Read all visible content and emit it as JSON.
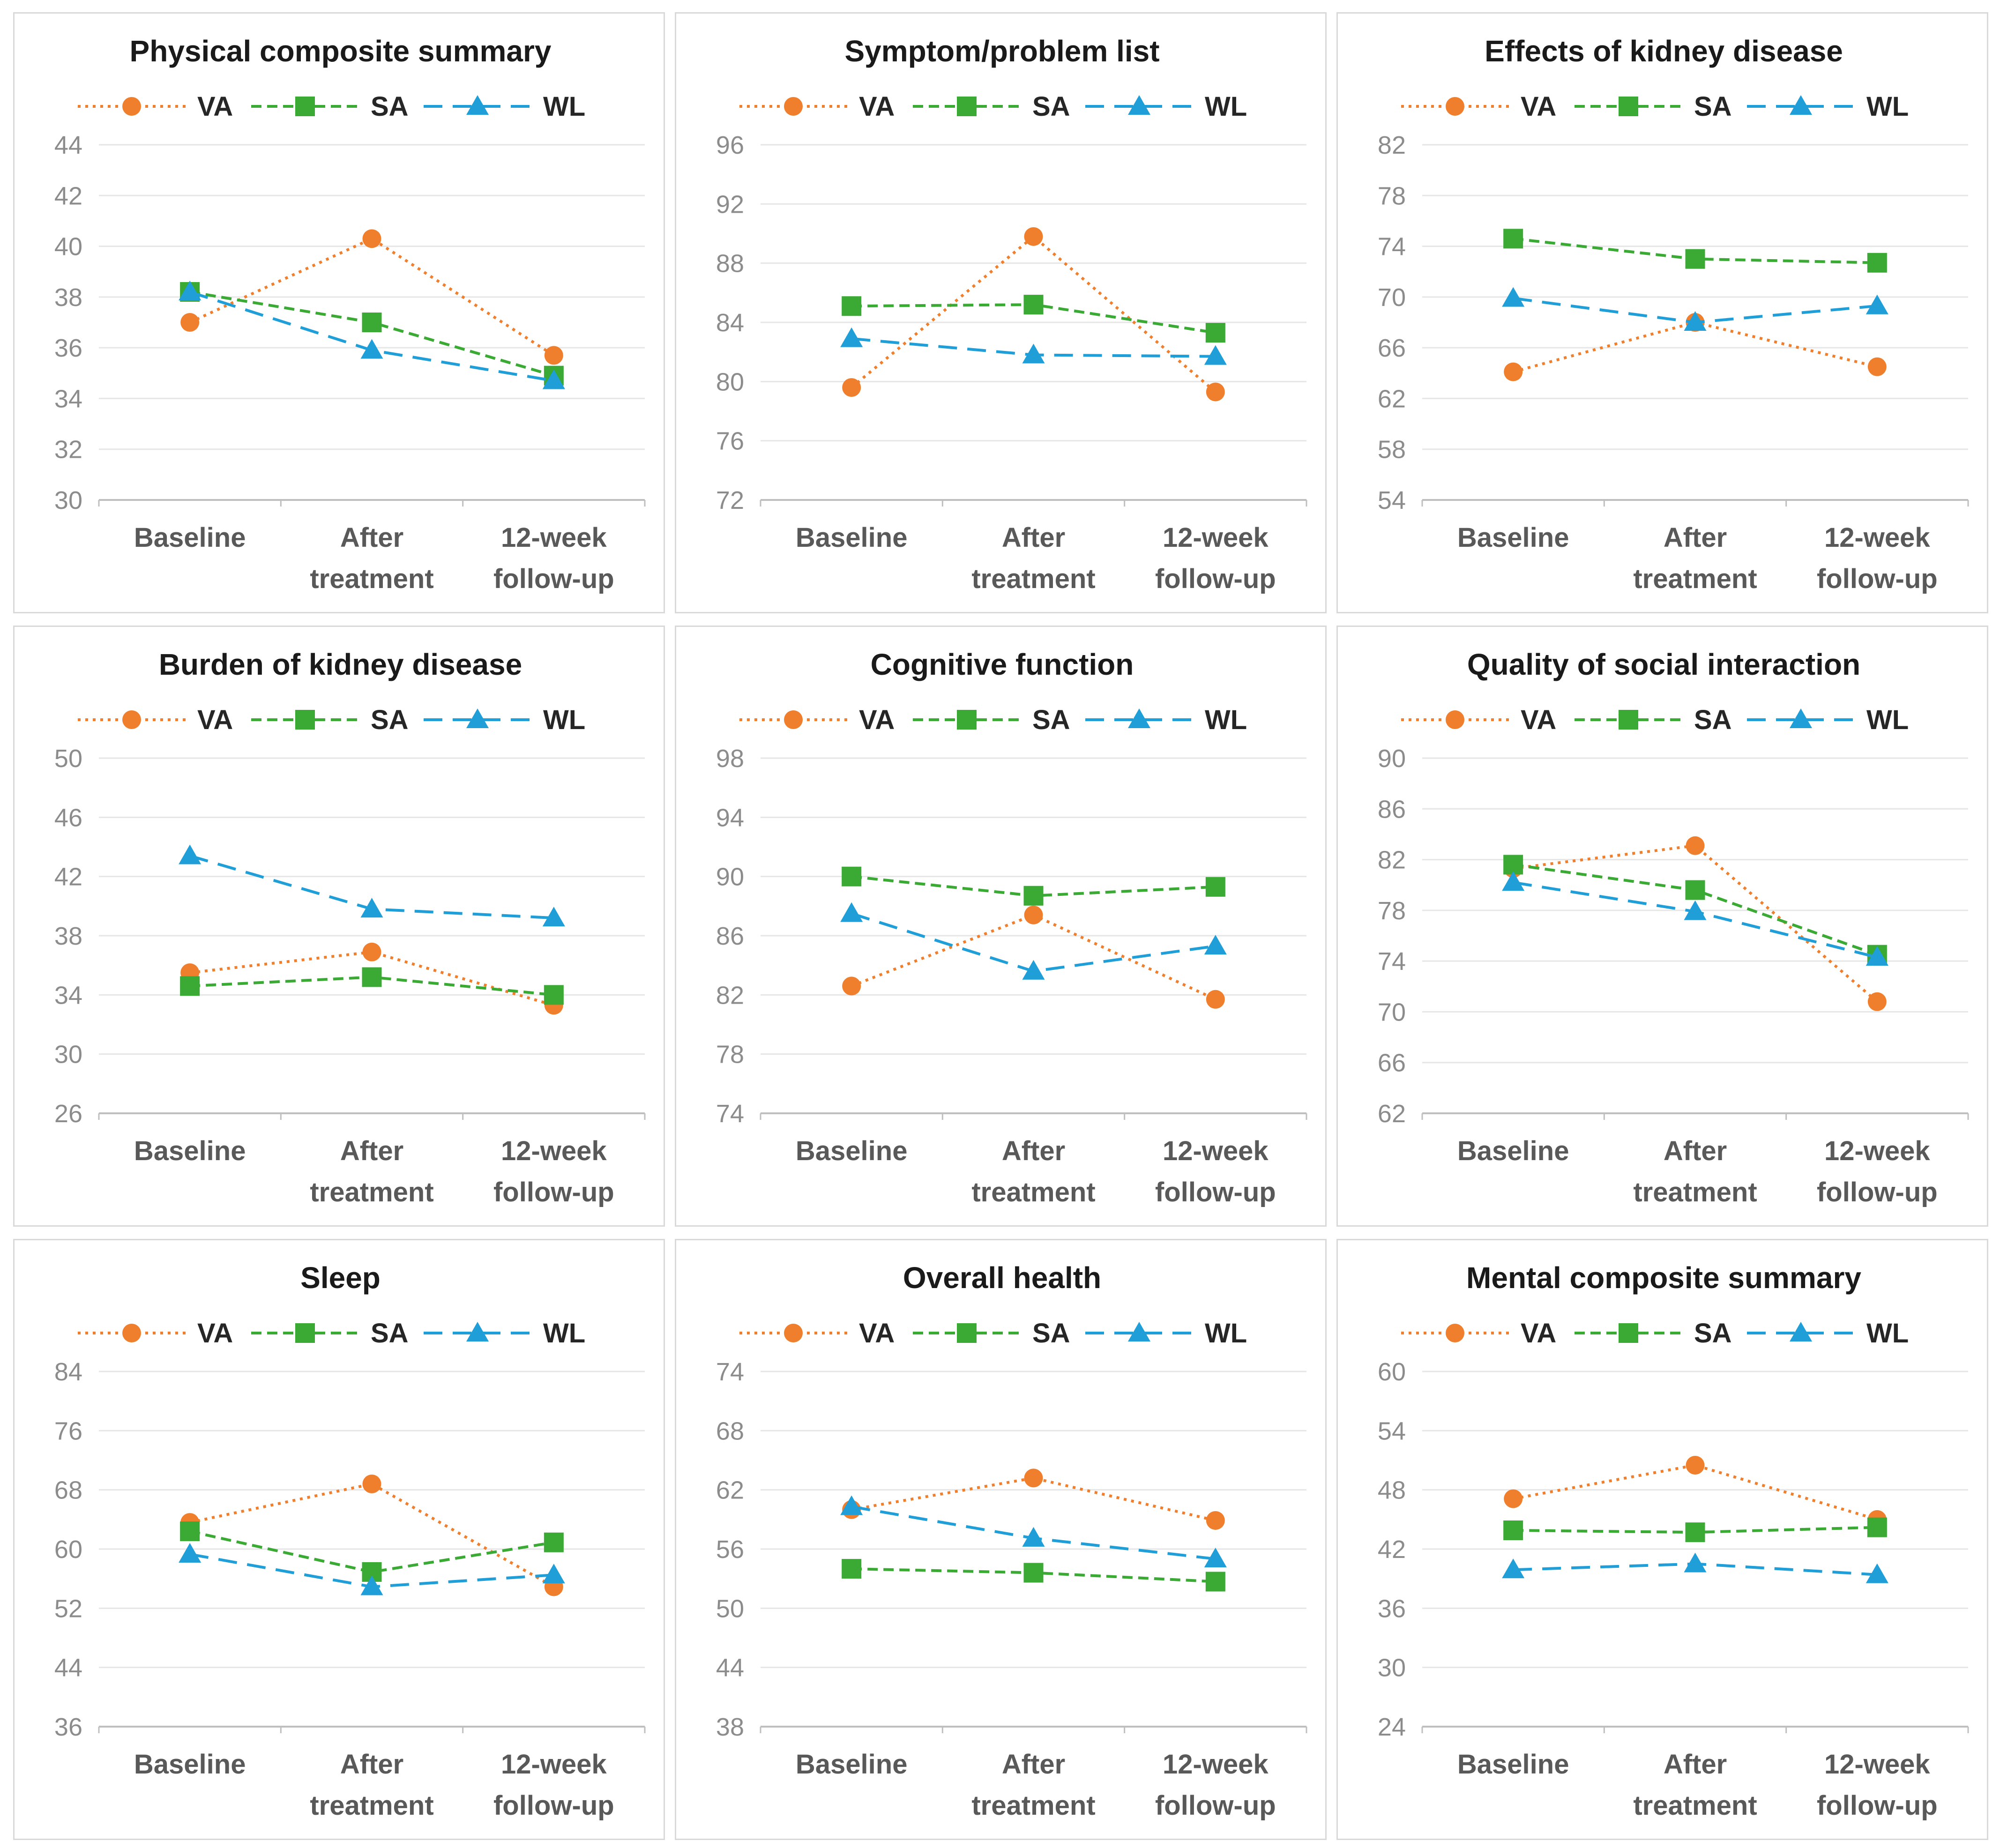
{
  "legend": [
    {
      "key": "VA",
      "label": "VA",
      "color": "#f07f2d",
      "marker": "circle",
      "dash": "dotted"
    },
    {
      "key": "SA",
      "label": "SA",
      "color": "#3aaa35",
      "marker": "square",
      "dash": "dashed"
    },
    {
      "key": "WL",
      "label": "WL",
      "color": "#1f9ed8",
      "marker": "triangle",
      "dash": "longdash"
    }
  ],
  "categories": [
    [
      "Baseline"
    ],
    [
      "After",
      "treatment"
    ],
    [
      "12-week",
      "follow-up"
    ]
  ],
  "chart_data": [
    {
      "type": "line",
      "title": "Physical composite summary",
      "ylim": [
        30,
        44
      ],
      "yticks": [
        30,
        32,
        34,
        36,
        38,
        40,
        42,
        44
      ],
      "series": [
        {
          "name": "VA",
          "values": [
            37.0,
            40.3,
            35.7
          ]
        },
        {
          "name": "SA",
          "values": [
            38.2,
            37.0,
            34.9
          ]
        },
        {
          "name": "WL",
          "values": [
            38.2,
            35.9,
            34.7
          ]
        }
      ]
    },
    {
      "type": "line",
      "title": "Symptom/problem list",
      "ylim": [
        72,
        96
      ],
      "yticks": [
        72,
        76,
        80,
        84,
        88,
        92,
        96
      ],
      "series": [
        {
          "name": "VA",
          "values": [
            79.6,
            89.8,
            79.3
          ]
        },
        {
          "name": "SA",
          "values": [
            85.1,
            85.2,
            83.3
          ]
        },
        {
          "name": "WL",
          "values": [
            82.9,
            81.8,
            81.7
          ]
        }
      ]
    },
    {
      "type": "line",
      "title": "Effects of kidney disease",
      "ylim": [
        54,
        82
      ],
      "yticks": [
        54,
        58,
        62,
        66,
        70,
        74,
        78,
        82
      ],
      "series": [
        {
          "name": "VA",
          "values": [
            64.1,
            68.0,
            64.5
          ]
        },
        {
          "name": "SA",
          "values": [
            74.6,
            73.0,
            72.7
          ]
        },
        {
          "name": "WL",
          "values": [
            69.9,
            68.0,
            69.3
          ]
        }
      ]
    },
    {
      "type": "line",
      "title": "Burden of kidney disease",
      "ylim": [
        26,
        50
      ],
      "yticks": [
        26,
        30,
        34,
        38,
        42,
        46,
        50
      ],
      "series": [
        {
          "name": "VA",
          "values": [
            35.5,
            36.9,
            33.3
          ]
        },
        {
          "name": "SA",
          "values": [
            34.6,
            35.2,
            34.0
          ]
        },
        {
          "name": "WL",
          "values": [
            43.4,
            39.8,
            39.2
          ]
        }
      ]
    },
    {
      "type": "line",
      "title": "Cognitive function",
      "ylim": [
        74,
        98
      ],
      "yticks": [
        74,
        78,
        82,
        86,
        90,
        94,
        98
      ],
      "series": [
        {
          "name": "VA",
          "values": [
            82.6,
            87.4,
            81.7
          ]
        },
        {
          "name": "SA",
          "values": [
            90.0,
            88.7,
            89.3
          ]
        },
        {
          "name": "WL",
          "values": [
            87.5,
            83.6,
            85.3
          ]
        }
      ]
    },
    {
      "type": "line",
      "title": "Quality of social interaction",
      "ylim": [
        62,
        90
      ],
      "yticks": [
        62,
        66,
        70,
        74,
        78,
        82,
        86,
        90
      ],
      "series": [
        {
          "name": "VA",
          "values": [
            81.3,
            83.1,
            70.8
          ]
        },
        {
          "name": "SA",
          "values": [
            81.6,
            79.6,
            74.5
          ]
        },
        {
          "name": "WL",
          "values": [
            80.2,
            77.9,
            74.3
          ]
        }
      ]
    },
    {
      "type": "line",
      "title": "Sleep",
      "ylim": [
        36,
        84
      ],
      "yticks": [
        36,
        44,
        52,
        60,
        68,
        76,
        84
      ],
      "series": [
        {
          "name": "VA",
          "values": [
            63.6,
            68.8,
            54.9
          ]
        },
        {
          "name": "SA",
          "values": [
            62.4,
            56.9,
            60.9
          ]
        },
        {
          "name": "WL",
          "values": [
            59.3,
            54.9,
            56.5
          ]
        }
      ]
    },
    {
      "type": "line",
      "title": "Overall health",
      "ylim": [
        38,
        74
      ],
      "yticks": [
        38,
        44,
        50,
        56,
        62,
        68,
        74
      ],
      "series": [
        {
          "name": "VA",
          "values": [
            60.0,
            63.2,
            58.9
          ]
        },
        {
          "name": "SA",
          "values": [
            54.0,
            53.6,
            52.7
          ]
        },
        {
          "name": "WL",
          "values": [
            60.3,
            57.1,
            55.0
          ]
        }
      ]
    },
    {
      "type": "line",
      "title": "Mental composite summary",
      "ylim": [
        24,
        60
      ],
      "yticks": [
        24,
        30,
        36,
        42,
        48,
        54,
        60
      ],
      "series": [
        {
          "name": "VA",
          "values": [
            47.1,
            50.5,
            45.0
          ]
        },
        {
          "name": "SA",
          "values": [
            43.9,
            43.7,
            44.2
          ]
        },
        {
          "name": "WL",
          "values": [
            39.9,
            40.5,
            39.4
          ]
        }
      ]
    }
  ]
}
